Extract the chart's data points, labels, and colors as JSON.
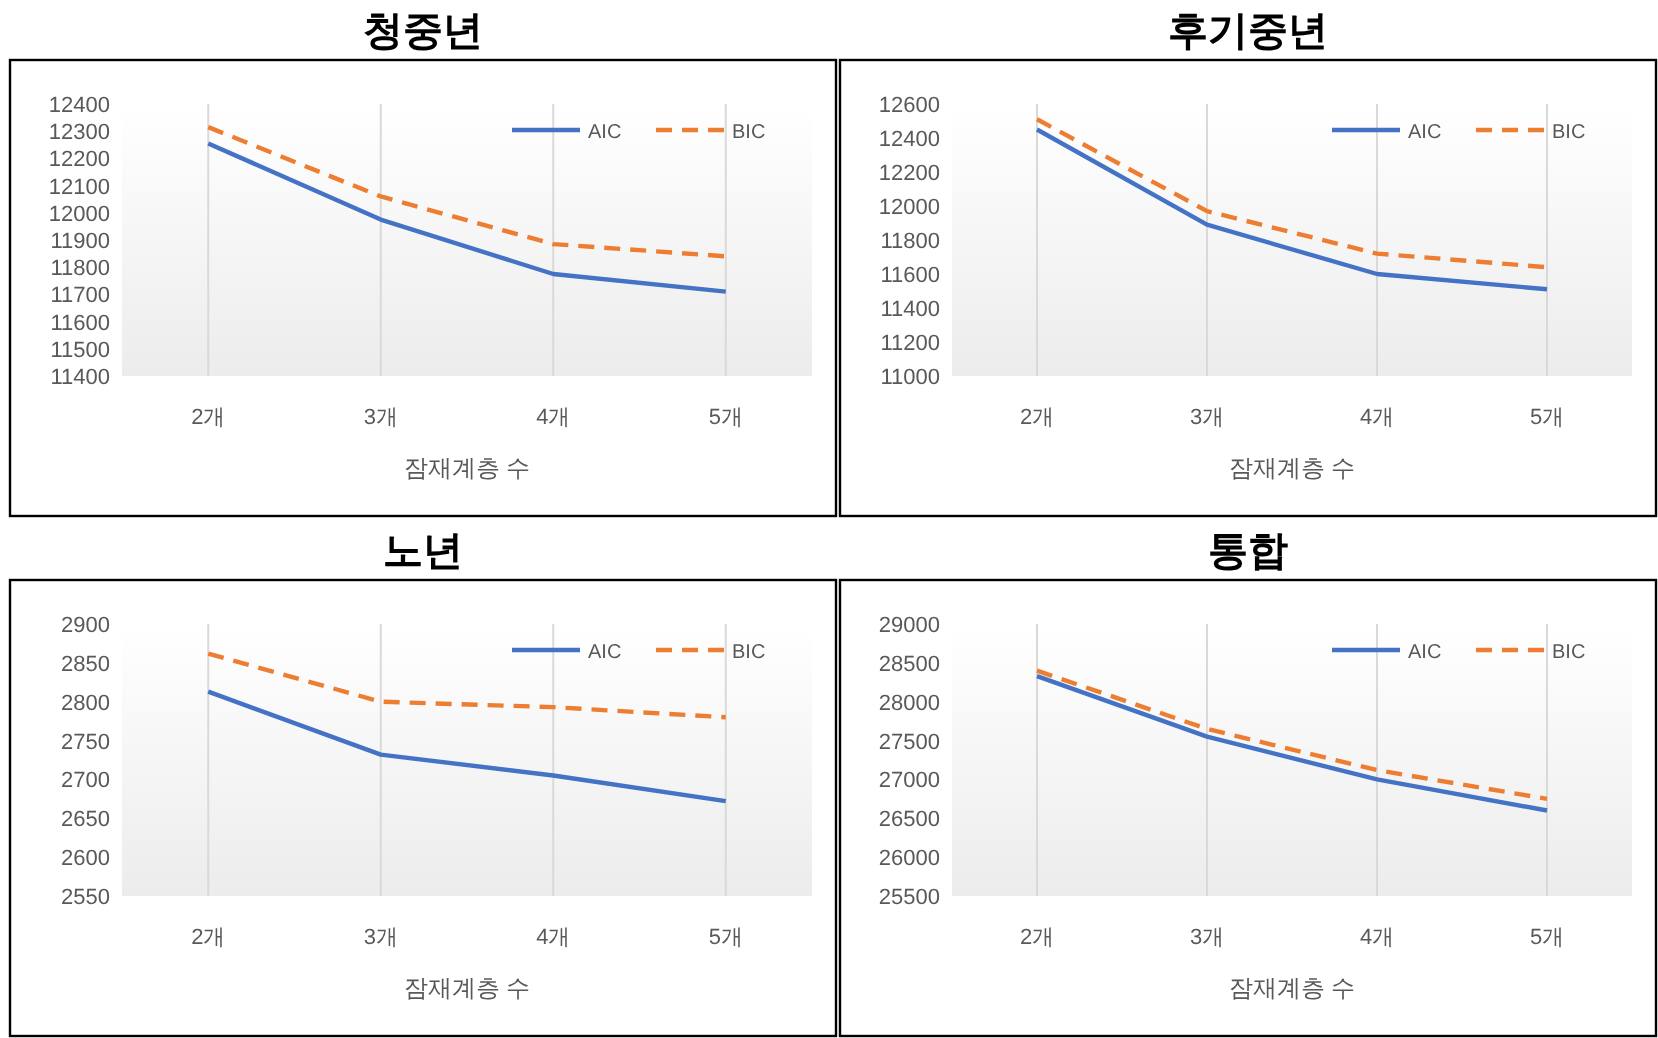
{
  "chart_data": [
    {
      "type": "line",
      "title": "청중년",
      "xlabel": "잠재계층 수",
      "categories": [
        "2개",
        "3개",
        "4개",
        "5개"
      ],
      "ylim": [
        11400,
        12400
      ],
      "yticks": [
        11400,
        11500,
        11600,
        11700,
        11800,
        11900,
        12000,
        12100,
        12200,
        12300,
        12400
      ],
      "grid": "x",
      "legend": "top right",
      "series": [
        {
          "name": "AIC",
          "color": "#4472c4",
          "line_style": "solid",
          "values": [
            12255,
            11975,
            11775,
            11710
          ]
        },
        {
          "name": "BIC",
          "color": "#ed7d31",
          "line_style": "dashed",
          "values": [
            12315,
            12060,
            11885,
            11840
          ]
        }
      ]
    },
    {
      "type": "line",
      "title": "후기중년",
      "xlabel": "잠재계층 수",
      "categories": [
        "2개",
        "3개",
        "4개",
        "5개"
      ],
      "ylim": [
        11000,
        12600
      ],
      "yticks": [
        11000,
        11200,
        11400,
        11600,
        11800,
        12000,
        12200,
        12400,
        12600
      ],
      "grid": "x",
      "legend": "top right",
      "series": [
        {
          "name": "AIC",
          "color": "#4472c4",
          "line_style": "solid",
          "values": [
            12450,
            11890,
            11600,
            11510
          ]
        },
        {
          "name": "BIC",
          "color": "#ed7d31",
          "line_style": "dashed",
          "values": [
            12510,
            11970,
            11720,
            11640
          ]
        }
      ]
    },
    {
      "type": "line",
      "title": "노년",
      "xlabel": "잠재계층 수",
      "categories": [
        "2개",
        "3개",
        "4개",
        "5개"
      ],
      "ylim": [
        2550,
        2900
      ],
      "yticks": [
        2550,
        2600,
        2650,
        2700,
        2750,
        2800,
        2850,
        2900
      ],
      "grid": "x",
      "legend": "top right",
      "series": [
        {
          "name": "AIC",
          "color": "#4472c4",
          "line_style": "solid",
          "values": [
            2813,
            2732,
            2705,
            2672
          ]
        },
        {
          "name": "BIC",
          "color": "#ed7d31",
          "line_style": "dashed",
          "values": [
            2862,
            2800,
            2793,
            2780
          ]
        }
      ]
    },
    {
      "type": "line",
      "title": "통합",
      "xlabel": "잠재계층 수",
      "categories": [
        "2개",
        "3개",
        "4개",
        "5개"
      ],
      "ylim": [
        25500,
        29000
      ],
      "yticks": [
        25500,
        26000,
        26500,
        27000,
        27500,
        28000,
        28500,
        29000
      ],
      "grid": "x",
      "legend": "top right",
      "series": [
        {
          "name": "AIC",
          "color": "#4472c4",
          "line_style": "solid",
          "values": [
            28330,
            27550,
            27000,
            26600
          ]
        },
        {
          "name": "BIC",
          "color": "#ed7d31",
          "line_style": "dashed",
          "values": [
            28400,
            27650,
            27120,
            26750
          ]
        }
      ]
    }
  ]
}
